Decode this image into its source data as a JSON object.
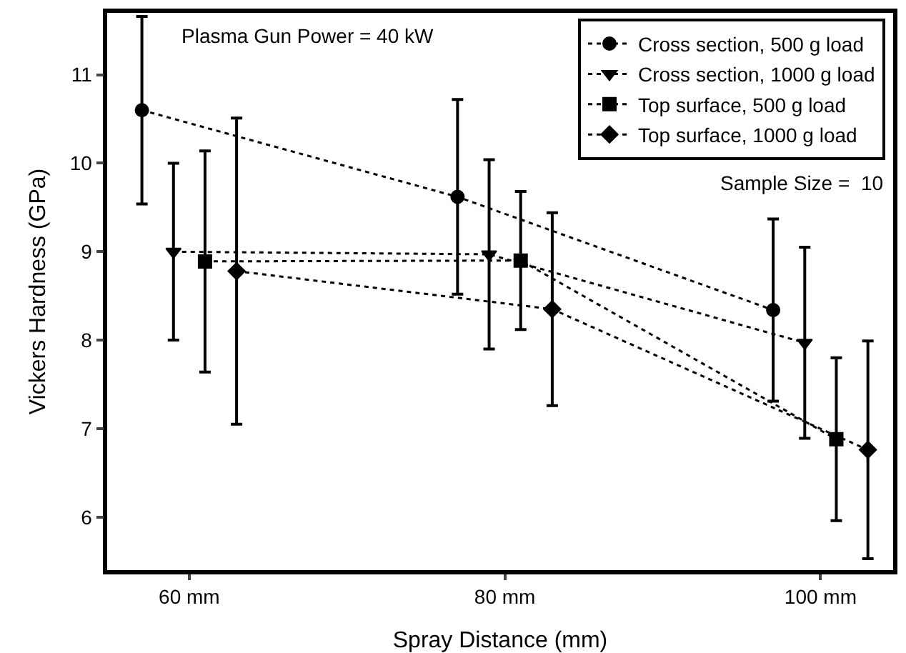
{
  "chart_data": {
    "type": "line",
    "xlabel": "Spray Distance (mm)",
    "ylabel": "Vickers Hardness (GPa)",
    "xlim": [
      54.8,
      104.6
    ],
    "xticks": [
      {
        "value": 60,
        "label": "60 mm"
      },
      {
        "value": 80,
        "label": "80 mm"
      },
      {
        "value": 100,
        "label": "100 mm"
      }
    ],
    "series": [
      {
        "name": "Cross section, 500 g load",
        "color": "#000000",
        "marker": "circle",
        "x": [
          57,
          77,
          97
        ],
        "values": [
          10.6,
          9.62,
          8.34
        ],
        "errors": [
          1.06,
          1.1,
          1.03
        ]
      },
      {
        "name": "Cross section, 1000 g load",
        "color": "#000000",
        "marker": "triangle",
        "x": [
          59,
          79,
          99
        ],
        "values": [
          9.0,
          8.97,
          7.97
        ],
        "errors": [
          1.0,
          1.07,
          1.08
        ]
      },
      {
        "name": "Top surface, 500 g load",
        "color": "#000000",
        "marker": "square",
        "x": [
          61,
          81,
          101
        ],
        "values": [
          8.89,
          8.9,
          6.88
        ],
        "errors": [
          1.25,
          0.78,
          0.92
        ]
      },
      {
        "name": "Top surface, 1000 g load",
        "color": "#000000",
        "marker": "diamond",
        "x": [
          63,
          83,
          103
        ],
        "values": [
          8.78,
          8.35,
          6.76
        ],
        "errors": [
          1.73,
          1.09,
          1.23
        ]
      }
    ],
    "ylim": [
      5.4,
      11.7
    ],
    "yticks": [
      6,
      7,
      8,
      9,
      10,
      11
    ],
    "grid": false,
    "legend": "top right",
    "line_style": "dotted",
    "annotations": [
      "Plasma Gun Power = 40 kW",
      "Sample Size =  10"
    ]
  }
}
